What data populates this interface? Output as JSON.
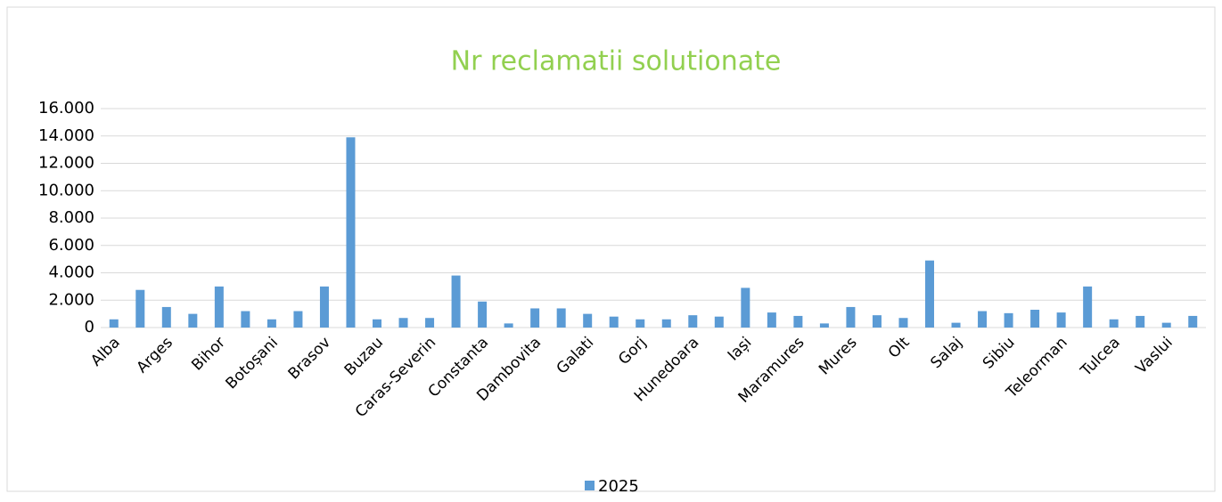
{
  "chart_data": {
    "type": "bar",
    "title": "Nr reclamatii solutionate",
    "categories": [
      "Alba",
      null,
      "Arges",
      null,
      "Bihor",
      null,
      "Botoșani",
      null,
      "Brasov",
      null,
      "Buzau",
      null,
      "Caras-Severin",
      null,
      "Constanta",
      null,
      "Dambovita",
      null,
      "Galati",
      null,
      "Gorj",
      null,
      "Hunedoara",
      null,
      "Iași",
      null,
      "Maramures",
      null,
      "Mures",
      null,
      "Olt",
      null,
      "Salaj",
      null,
      "Sibiu",
      null,
      "Teleorman",
      null,
      "Tulcea",
      null,
      "Vaslui",
      null
    ],
    "series": [
      {
        "name": "2025",
        "color": "#5b9bd5",
        "values": [
          600,
          2750,
          1500,
          1000,
          3000,
          1200,
          600,
          1200,
          3000,
          13900,
          600,
          700,
          700,
          3800,
          1900,
          300,
          1400,
          1400,
          1000,
          800,
          600,
          600,
          900,
          800,
          2900,
          1100,
          850,
          300,
          1500,
          900,
          700,
          4900,
          350,
          1200,
          1050,
          1300,
          1100,
          3000,
          600,
          850,
          350,
          850
        ]
      }
    ],
    "ylim": [
      0,
      16000
    ],
    "yticks": [
      0,
      {
        "value": 2000,
        "label": "2.000"
      },
      {
        "value": 4000,
        "label": "4.000"
      },
      {
        "value": 6000,
        "label": "6.000"
      },
      {
        "value": 8000,
        "label": "8.000"
      },
      {
        "value": 10000,
        "label": "10.000"
      },
      {
        "value": 12000,
        "label": "12.000"
      },
      {
        "value": 14000,
        "label": "14.000"
      },
      {
        "value": 16000,
        "label": "16.000"
      }
    ],
    "grid": true,
    "legend": "bottom"
  }
}
